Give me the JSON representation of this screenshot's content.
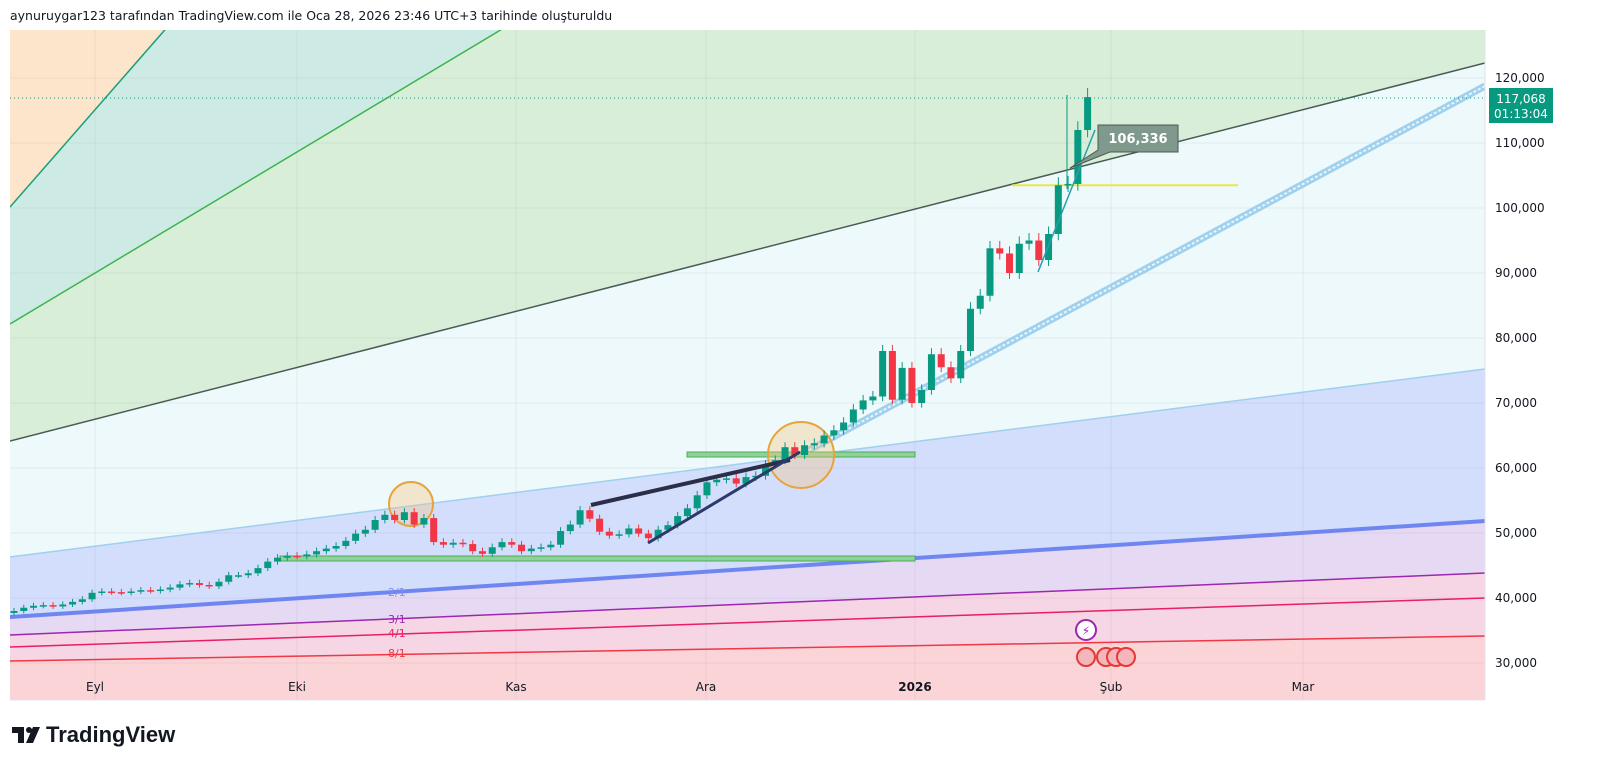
{
  "header": {
    "caption": "aynuruygar123 tarafından TradingView.com ile Oca 28, 2026 23:46 UTC+3 tarihinde oluşturuldu"
  },
  "brand": {
    "name": "TradingView"
  },
  "colors": {
    "up": "#089981",
    "down": "#f23645",
    "last_price_bg": "#089981",
    "highlight_line": "#e8e84a"
  },
  "chart_data": {
    "type": "candlestick",
    "price_axis": {
      "ticks": [
        "120,000",
        "110,000",
        "100,000",
        "90,000",
        "80,000",
        "70,000",
        "60,000",
        "50,000",
        "40,000",
        "30,000"
      ],
      "ylim": [
        28000,
        127000
      ]
    },
    "time_axis": {
      "ticks": [
        "Eyl",
        "Eki",
        "Kas",
        "Ara",
        "2026",
        "Şub",
        "Mar"
      ]
    },
    "last_price": "117,068",
    "countdown": "01:13:04",
    "price_label": "106,336",
    "fan_labels": [
      "2/1",
      "3/1",
      "4/1",
      "8/1"
    ],
    "closes": [
      38.0,
      38.5,
      38.8,
      38.9,
      38.7,
      39.0,
      39.4,
      39.8,
      40.8,
      41.0,
      40.9,
      40.8,
      41.0,
      41.2,
      41.1,
      41.3,
      41.6,
      42.1,
      42.3,
      42.0,
      41.8,
      42.5,
      43.5,
      43.5,
      43.8,
      44.6,
      45.6,
      46.2,
      46.5,
      46.4,
      46.7,
      47.2,
      47.6,
      48.0,
      48.8,
      49.9,
      50.5,
      52.0,
      52.8,
      52.0,
      53.2,
      51.3,
      52.3,
      48.6,
      48.2,
      48.5,
      48.3,
      47.2,
      46.8,
      47.8,
      48.6,
      48.2,
      47.2,
      47.6,
      47.8,
      48.2,
      50.3,
      51.3,
      53.5,
      52.2,
      50.2,
      49.6,
      49.8,
      50.7,
      49.9,
      49.2,
      50.5,
      51.2,
      52.6,
      53.8,
      55.8,
      57.8,
      58.2,
      58.4,
      57.6,
      58.6,
      58.8,
      60.5,
      61.2,
      63.2,
      62.0,
      63.5,
      63.8,
      65.0,
      65.8,
      67.0,
      69.0,
      70.4,
      71.0,
      78.0,
      70.5,
      75.4,
      70.0,
      72.0,
      77.5,
      75.5,
      73.8,
      78.0,
      84.5,
      86.5,
      93.8,
      93.0,
      90.0,
      94.5,
      95.0,
      92.0,
      96.0,
      103.5,
      103.7,
      112.0,
      117.068
    ],
    "closes_unit": "thousands",
    "annotations": {
      "support_zones": [
        62000,
        46000
      ],
      "horizontal_line": 103500
    }
  }
}
